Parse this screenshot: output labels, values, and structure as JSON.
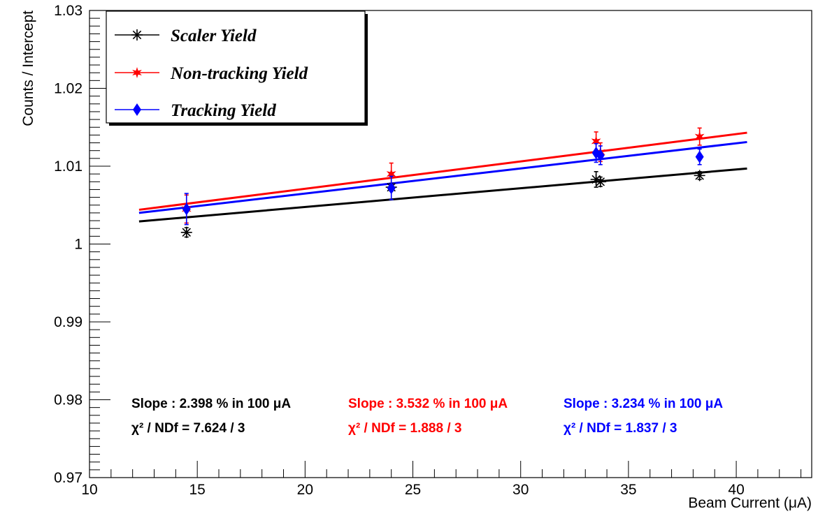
{
  "chart_data": {
    "type": "scatter",
    "xlabel": "Beam Current (μA)",
    "ylabel": "Counts / Intercept",
    "xlim": [
      10,
      43.5
    ],
    "ylim": [
      0.97,
      1.03
    ],
    "x_ticks": [
      "10",
      "15",
      "20",
      "25",
      "30",
      "35",
      "40"
    ],
    "y_ticks": [
      "0.97",
      "0.98",
      "0.99",
      "1",
      "1.01",
      "1.02",
      "1.03"
    ],
    "legend_position": "top-left",
    "colors": {
      "black": "#000000",
      "red": "#ff0000",
      "blue": "#0000ff"
    },
    "series": [
      {
        "name": "Scaler Yield",
        "color": "#000000",
        "marker": "asterisk",
        "x": [
          14.5,
          24.0,
          33.5,
          33.7,
          38.3
        ],
        "y": [
          1.0015,
          1.0073,
          1.0083,
          1.008,
          1.0088
        ],
        "err": [
          0.0006,
          0.0005,
          0.001,
          0.0006,
          0.0005
        ],
        "fit": {
          "x": [
            12.3,
            40.5
          ],
          "y": [
            1.0029,
            1.0097
          ]
        },
        "slope_text": "Slope : 2.398 % in 100 μA",
        "chi_text": "χ² / NDf = 7.624 / 3"
      },
      {
        "name": "Non-tracking Yield",
        "color": "#ff0000",
        "marker": "star",
        "x": [
          14.5,
          24.0,
          33.5,
          33.7,
          38.3
        ],
        "y": [
          1.0045,
          1.009,
          1.0132,
          1.0118,
          1.0138
        ],
        "err": [
          0.0018,
          0.0014,
          0.0012,
          0.0012,
          0.0011
        ],
        "fit": {
          "x": [
            12.3,
            40.5
          ],
          "y": [
            1.0044,
            1.0143
          ]
        },
        "slope_text": "Slope : 3.532 % in 100 μA",
        "chi_text": "χ² / NDf = 1.888 / 3"
      },
      {
        "name": "Tracking Yield",
        "color": "#0000ff",
        "marker": "diamond",
        "x": [
          14.5,
          24.0,
          33.5,
          33.7,
          38.3
        ],
        "y": [
          1.0045,
          1.0072,
          1.0117,
          1.0114,
          1.0112
        ],
        "err": [
          0.002,
          0.0015,
          0.0012,
          0.0012,
          0.001
        ],
        "fit": {
          "x": [
            12.3,
            40.5
          ],
          "y": [
            1.004,
            1.0131
          ]
        },
        "slope_text": "Slope : 3.234 % in 100 μA",
        "chi_text": "χ² / NDf = 1.837 / 3"
      }
    ]
  }
}
